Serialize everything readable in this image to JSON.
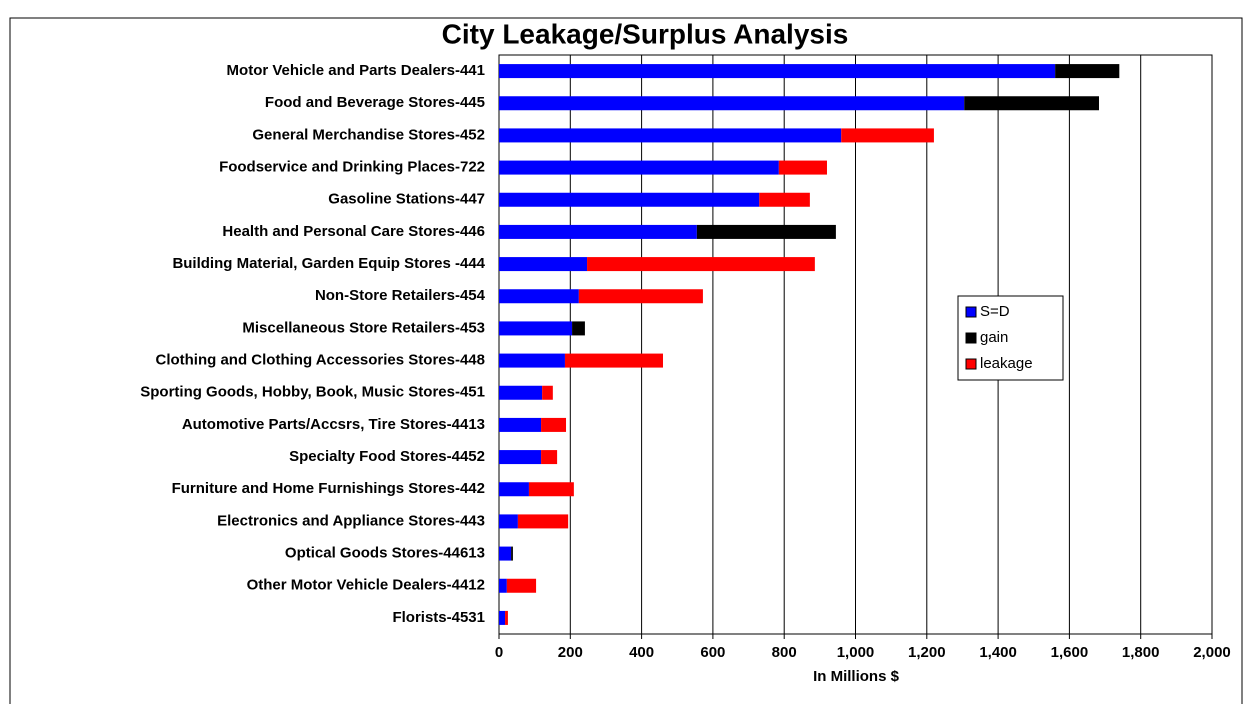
{
  "chart_data": {
    "type": "stacked_barh",
    "title": "City Leakage/Surplus Analysis",
    "xlabel": "In Millions $",
    "categories": [
      "Motor Vehicle and Parts Dealers-441",
      "Food and Beverage Stores-445",
      "General Merchandise Stores-452",
      "Foodservice and Drinking Places-722",
      "Gasoline Stations-447",
      "Health and Personal Care Stores-446",
      "Building Material, Garden Equip Stores -444",
      "Non-Store Retailers-454",
      "Miscellaneous Store Retailers-453",
      "Clothing and Clothing Accessories Stores-448",
      "Sporting Goods, Hobby, Book, Music Stores-451",
      "Automotive Parts/Accsrs, Tire Stores-4413",
      "Specialty Food Stores-4452",
      "Furniture and Home Furnishings Stores-442",
      "Electronics and Appliance Stores-443",
      "Optical Goods Stores-44613",
      "Other Motor Vehicle Dealers-4412",
      "Florists-4531"
    ],
    "series": [
      {
        "name": "S=D",
        "color": "#0000ff",
        "values": [
          1560,
          1305,
          960,
          785,
          730,
          555,
          247,
          224,
          205,
          185,
          121,
          118,
          118,
          84,
          53,
          34,
          22,
          17
        ]
      },
      {
        "name": "gain",
        "color": "#000000",
        "values": [
          180,
          378,
          null,
          null,
          null,
          390,
          null,
          null,
          36,
          null,
          null,
          null,
          null,
          null,
          null,
          5,
          null,
          null
        ]
      },
      {
        "name": "leakage",
        "color": "#ff0000",
        "values": [
          null,
          null,
          260,
          135,
          142,
          null,
          639,
          348,
          null,
          275,
          30,
          70,
          45,
          126,
          141,
          null,
          82,
          8
        ]
      }
    ],
    "xlim": [
      0,
      2000
    ],
    "xticks": [
      0,
      {
        "value": 200,
        "label": "200"
      },
      400,
      600,
      800,
      {
        "value": 1000,
        "label": "1,000"
      },
      {
        "value": 1200,
        "label": "1,200"
      },
      {
        "value": 1400,
        "label": "1,400"
      },
      {
        "value": 1600,
        "label": "1,600"
      },
      {
        "value": 1800,
        "label": "1,800"
      },
      {
        "value": 2000,
        "label": "2,000"
      }
    ],
    "grid": true,
    "legend": "right"
  }
}
